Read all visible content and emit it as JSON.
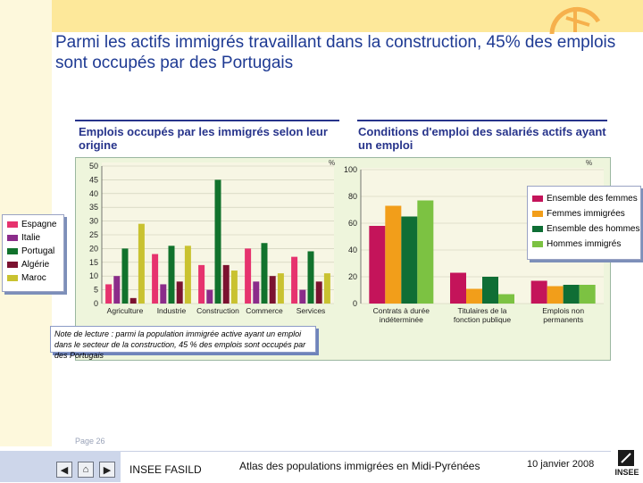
{
  "slide": {
    "title": "Parmi les actifs immigrés travaillant dans la construction, 45% des emplois sont occupés par des Portugais"
  },
  "chart_data": [
    {
      "type": "bar",
      "title": "Emplois occupés par les immigrés selon leur origine",
      "ylabel": "%",
      "ylim": [
        0,
        50
      ],
      "yticks": [
        0,
        5,
        10,
        15,
        20,
        25,
        30,
        35,
        40,
        45,
        50
      ],
      "categories": [
        "Agriculture",
        "Industrie",
        "Construction",
        "Commerce",
        "Services"
      ],
      "series": [
        {
          "name": "Espagne",
          "color": "#e6336e",
          "values": [
            7,
            18,
            14,
            20,
            17
          ]
        },
        {
          "name": "Italie",
          "color": "#8b2c8a",
          "values": [
            10,
            7,
            5,
            8,
            5
          ]
        },
        {
          "name": "Portugal",
          "color": "#11722c",
          "values": [
            20,
            21,
            45,
            22,
            19
          ]
        },
        {
          "name": "Algérie",
          "color": "#7b1230",
          "values": [
            2,
            8,
            14,
            10,
            8
          ]
        },
        {
          "name": "Maroc",
          "color": "#c9c230",
          "values": [
            29,
            21,
            12,
            11,
            11
          ]
        }
      ]
    },
    {
      "type": "bar",
      "title": "Conditions d'emploi des salariés actifs ayant un emploi",
      "ylabel": "%",
      "ylim": [
        0,
        100
      ],
      "yticks": [
        0,
        20,
        40,
        60,
        80,
        100
      ],
      "categories": [
        "Contrats à durée indéterminée",
        "Titulaires de la fonction publique",
        "Emplois non permanents"
      ],
      "category_lines": [
        [
          "Contrats à durée",
          "indéterminée"
        ],
        [
          "Titulaires de la",
          "fonction publique"
        ],
        [
          "Emplois non",
          "permanents"
        ]
      ],
      "series": [
        {
          "name": "Ensemble des femmes",
          "color": "#c4145a",
          "values": [
            58,
            23,
            17
          ]
        },
        {
          "name": "Femmes immigrées",
          "color": "#f29e1a",
          "values": [
            73,
            11,
            13
          ]
        },
        {
          "name": "Ensemble des hommes",
          "color": "#0f6e35",
          "values": [
            65,
            20,
            14
          ]
        },
        {
          "name": "Hommes immigrés",
          "color": "#7cc242",
          "values": [
            77,
            7,
            14
          ]
        }
      ]
    }
  ],
  "note": "Note de lecture : parmi la population immigrée active ayant un emploi dans le secteur de la construction, 45 % des emplois sont occupés par des Portugais",
  "footer": {
    "page": "Page 26",
    "source": "INSEE FASILD",
    "atlas": "Atlas des populations immigrées en Midi-Pyrénées",
    "date": "10 janvier 2008",
    "logo": "INSEE",
    "nav_prev": "◀",
    "nav_home": "⌂",
    "nav_next": "▶"
  }
}
